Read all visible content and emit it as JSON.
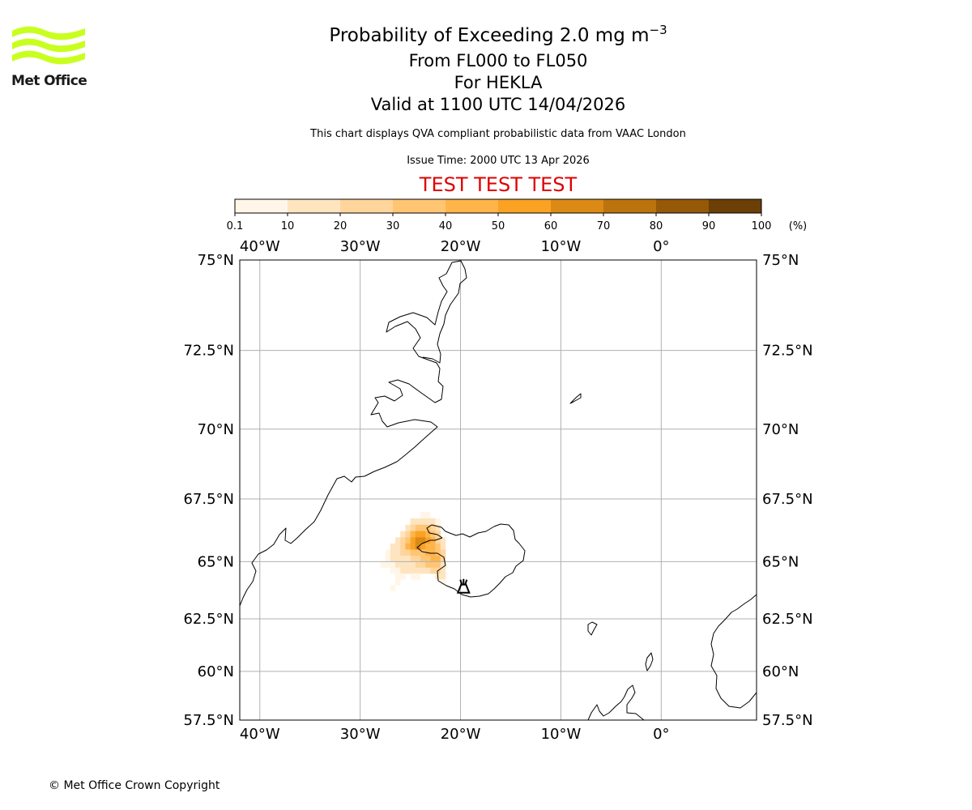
{
  "logo": {
    "text": "Met Office",
    "color": "#c8ff1e"
  },
  "title": {
    "main_prefix": "Probability of Exceeding 2.0 mg m",
    "main_exponent": "−3",
    "flight_levels": "From FL000 to FL050",
    "volcano": "For HEKLA",
    "valid": "Valid at 1100 UTC 14/04/2026"
  },
  "subtitle": "This chart displays QVA compliant probabilistic data from VAAC London",
  "issue_time": "Issue Time: 2000 UTC 13 Apr 2026",
  "test_banner": "TEST TEST TEST",
  "copyright": "© Met Office Crown Copyright",
  "colorbar": {
    "unit": "(%)",
    "ticks": [
      "0.1",
      "10",
      "20",
      "30",
      "40",
      "50",
      "60",
      "70",
      "80",
      "90",
      "100"
    ],
    "colors": [
      "#fff6e8",
      "#ffe4c0",
      "#ffd59b",
      "#ffc573",
      "#ffb44a",
      "#f9a223",
      "#db8a16",
      "#bb730e",
      "#955909",
      "#6b3f06"
    ]
  },
  "chart_data": {
    "type": "heatmap",
    "title": "Probability of Exceeding 2.0 mg m−3",
    "projection": "mercator",
    "lon_range": [
      -42,
      9.5
    ],
    "lat_range": [
      57.5,
      75
    ],
    "lon_ticks": [
      {
        "value": -40,
        "label": "40°W"
      },
      {
        "value": -30,
        "label": "30°W"
      },
      {
        "value": -20,
        "label": "20°W"
      },
      {
        "value": -10,
        "label": "10°W"
      },
      {
        "value": 0,
        "label": "0°"
      }
    ],
    "lat_ticks": [
      {
        "value": 75,
        "label": "75°N"
      },
      {
        "value": 72.5,
        "label": "72.5°N"
      },
      {
        "value": 70,
        "label": "70°N"
      },
      {
        "value": 67.5,
        "label": "67.5°N"
      },
      {
        "value": 65,
        "label": "65°N"
      },
      {
        "value": 62.5,
        "label": "62.5°N"
      },
      {
        "value": 60,
        "label": "60°N"
      },
      {
        "value": 57.5,
        "label": "57.5°N"
      }
    ],
    "grid": true,
    "cell_size_deg": [
      0.5,
      0.25
    ],
    "ash_cells": [
      {
        "lon": -24,
        "lat": 66.75,
        "p": 5
      },
      {
        "lon": -23.5,
        "lat": 66.75,
        "p": 5
      },
      {
        "lon": -25,
        "lat": 66.5,
        "p": 10
      },
      {
        "lon": -24.5,
        "lat": 66.5,
        "p": 15
      },
      {
        "lon": -24,
        "lat": 66.5,
        "p": 15
      },
      {
        "lon": -23.5,
        "lat": 66.5,
        "p": 15
      },
      {
        "lon": -23,
        "lat": 66.5,
        "p": 10
      },
      {
        "lon": -22.5,
        "lat": 66.5,
        "p": 5
      },
      {
        "lon": -25.5,
        "lat": 66.25,
        "p": 10
      },
      {
        "lon": -25,
        "lat": 66.25,
        "p": 20
      },
      {
        "lon": -24.5,
        "lat": 66.25,
        "p": 30
      },
      {
        "lon": -24,
        "lat": 66.25,
        "p": 35
      },
      {
        "lon": -23.5,
        "lat": 66.25,
        "p": 30
      },
      {
        "lon": -23,
        "lat": 66.25,
        "p": 25
      },
      {
        "lon": -22.5,
        "lat": 66.25,
        "p": 15
      },
      {
        "lon": -26,
        "lat": 66.0,
        "p": 10
      },
      {
        "lon": -25.5,
        "lat": 66.0,
        "p": 25
      },
      {
        "lon": -25,
        "lat": 66.0,
        "p": 40
      },
      {
        "lon": -24.5,
        "lat": 66.0,
        "p": 55
      },
      {
        "lon": -24,
        "lat": 66.0,
        "p": 55
      },
      {
        "lon": -23.5,
        "lat": 66.0,
        "p": 45
      },
      {
        "lon": -23,
        "lat": 66.0,
        "p": 35
      },
      {
        "lon": -22.5,
        "lat": 66.0,
        "p": 20
      },
      {
        "lon": -26.5,
        "lat": 65.75,
        "p": 10
      },
      {
        "lon": -26,
        "lat": 65.75,
        "p": 20
      },
      {
        "lon": -25.5,
        "lat": 65.75,
        "p": 35
      },
      {
        "lon": -25,
        "lat": 65.75,
        "p": 50
      },
      {
        "lon": -24.5,
        "lat": 65.75,
        "p": 65
      },
      {
        "lon": -24,
        "lat": 65.75,
        "p": 60
      },
      {
        "lon": -23.5,
        "lat": 65.75,
        "p": 50
      },
      {
        "lon": -23,
        "lat": 65.75,
        "p": 40
      },
      {
        "lon": -22.5,
        "lat": 65.75,
        "p": 25
      },
      {
        "lon": -22,
        "lat": 65.75,
        "p": 10
      },
      {
        "lon": -27,
        "lat": 65.5,
        "p": 10
      },
      {
        "lon": -26.5,
        "lat": 65.5,
        "p": 15
      },
      {
        "lon": -26,
        "lat": 65.5,
        "p": 25
      },
      {
        "lon": -25.5,
        "lat": 65.5,
        "p": 40
      },
      {
        "lon": -25,
        "lat": 65.5,
        "p": 55
      },
      {
        "lon": -24.5,
        "lat": 65.5,
        "p": 60
      },
      {
        "lon": -24,
        "lat": 65.5,
        "p": 55
      },
      {
        "lon": -23.5,
        "lat": 65.5,
        "p": 45
      },
      {
        "lon": -23,
        "lat": 65.5,
        "p": 40
      },
      {
        "lon": -22.5,
        "lat": 65.5,
        "p": 30
      },
      {
        "lon": -22,
        "lat": 65.5,
        "p": 15
      },
      {
        "lon": -27.5,
        "lat": 65.25,
        "p": 5
      },
      {
        "lon": -27,
        "lat": 65.25,
        "p": 10
      },
      {
        "lon": -26.5,
        "lat": 65.25,
        "p": 15
      },
      {
        "lon": -26,
        "lat": 65.25,
        "p": 20
      },
      {
        "lon": -25.5,
        "lat": 65.25,
        "p": 25
      },
      {
        "lon": -25,
        "lat": 65.25,
        "p": 30
      },
      {
        "lon": -24.5,
        "lat": 65.25,
        "p": 30
      },
      {
        "lon": -24,
        "lat": 65.25,
        "p": 35
      },
      {
        "lon": -23.5,
        "lat": 65.25,
        "p": 40
      },
      {
        "lon": -23,
        "lat": 65.25,
        "p": 45
      },
      {
        "lon": -22.5,
        "lat": 65.25,
        "p": 35
      },
      {
        "lon": -22,
        "lat": 65.25,
        "p": 20
      },
      {
        "lon": -27.5,
        "lat": 65.0,
        "p": 5
      },
      {
        "lon": -27,
        "lat": 65.0,
        "p": 10
      },
      {
        "lon": -26.5,
        "lat": 65.0,
        "p": 10
      },
      {
        "lon": -26,
        "lat": 65.0,
        "p": 15
      },
      {
        "lon": -25.5,
        "lat": 65.0,
        "p": 15
      },
      {
        "lon": -25,
        "lat": 65.0,
        "p": 20
      },
      {
        "lon": -24.5,
        "lat": 65.0,
        "p": 25
      },
      {
        "lon": -24,
        "lat": 65.0,
        "p": 30
      },
      {
        "lon": -23.5,
        "lat": 65.0,
        "p": 35
      },
      {
        "lon": -23,
        "lat": 65.0,
        "p": 45
      },
      {
        "lon": -22.5,
        "lat": 65.0,
        "p": 40
      },
      {
        "lon": -22,
        "lat": 65.0,
        "p": 25
      },
      {
        "lon": -28,
        "lat": 64.75,
        "p": 5
      },
      {
        "lon": -27.5,
        "lat": 64.75,
        "p": 5
      },
      {
        "lon": -27,
        "lat": 64.75,
        "p": 5
      },
      {
        "lon": -26.5,
        "lat": 64.75,
        "p": 10
      },
      {
        "lon": -26,
        "lat": 64.75,
        "p": 10
      },
      {
        "lon": -25.5,
        "lat": 64.75,
        "p": 15
      },
      {
        "lon": -25,
        "lat": 64.75,
        "p": 15
      },
      {
        "lon": -24.5,
        "lat": 64.75,
        "p": 20
      },
      {
        "lon": -24,
        "lat": 64.75,
        "p": 25
      },
      {
        "lon": -23.5,
        "lat": 64.75,
        "p": 30
      },
      {
        "lon": -23,
        "lat": 64.75,
        "p": 35
      },
      {
        "lon": -22.5,
        "lat": 64.75,
        "p": 30
      },
      {
        "lon": -22,
        "lat": 64.75,
        "p": 15
      },
      {
        "lon": -27,
        "lat": 64.5,
        "p": 5
      },
      {
        "lon": -26.5,
        "lat": 64.5,
        "p": 5
      },
      {
        "lon": -26,
        "lat": 64.5,
        "p": 10
      },
      {
        "lon": -25.5,
        "lat": 64.5,
        "p": 10
      },
      {
        "lon": -25,
        "lat": 64.5,
        "p": 10
      },
      {
        "lon": -24.5,
        "lat": 64.5,
        "p": 10
      },
      {
        "lon": -24,
        "lat": 64.5,
        "p": 15
      },
      {
        "lon": -23.5,
        "lat": 64.5,
        "p": 15
      },
      {
        "lon": -23,
        "lat": 64.5,
        "p": 20
      },
      {
        "lon": -22.5,
        "lat": 64.5,
        "p": 20
      },
      {
        "lon": -22,
        "lat": 64.5,
        "p": 10
      },
      {
        "lon": -26.5,
        "lat": 64.25,
        "p": 5
      },
      {
        "lon": -26,
        "lat": 64.25,
        "p": 5
      },
      {
        "lon": -25,
        "lat": 64.25,
        "p": 5
      },
      {
        "lon": -24.5,
        "lat": 64.25,
        "p": 5
      },
      {
        "lon": -22.5,
        "lat": 64.25,
        "p": 10
      },
      {
        "lon": -22,
        "lat": 64.25,
        "p": 10
      },
      {
        "lon": -26.5,
        "lat": 64.0,
        "p": 5
      },
      {
        "lon": -22,
        "lat": 64.0,
        "p": 5
      },
      {
        "lon": -27,
        "lat": 63.75,
        "p": 5
      }
    ]
  },
  "volcano": {
    "name": "HEKLA",
    "lon": -19.7,
    "lat": 63.99
  }
}
